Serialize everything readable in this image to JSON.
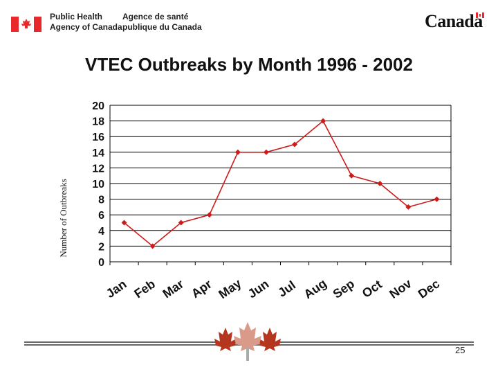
{
  "header": {
    "agency_en_line1": "Public Health",
    "agency_en_line2": "Agency of Canada",
    "agency_fr_line1": "Agence de santé",
    "agency_fr_line2": "publique du Canada",
    "wordmark": "Canada"
  },
  "slide": {
    "title": "VTEC Outbreaks by Month 1996 - 2002",
    "page_number": "25"
  },
  "colors": {
    "series": "#cc1b1b",
    "grid": "#000000",
    "flag_red": "#e8282b"
  },
  "chart_data": {
    "type": "line",
    "title": "VTEC Outbreaks by Month 1996 - 2002",
    "xlabel": "",
    "ylabel": "Number of Outbreaks",
    "categories": [
      "Jan",
      "Feb",
      "Mar",
      "Apr",
      "May",
      "Jun",
      "Jul",
      "Aug",
      "Sep",
      "Oct",
      "Nov",
      "Dec"
    ],
    "series": [
      {
        "values": [
          5,
          2,
          5,
          6,
          14,
          14,
          15,
          18,
          11,
          10,
          7,
          8
        ]
      }
    ],
    "y_ticks": [
      "0",
      "2",
      "4",
      "6",
      "8",
      "10",
      "12",
      "14",
      "16",
      "18",
      "20"
    ],
    "ylim": [
      0,
      20
    ],
    "grid": true,
    "legend": "none"
  }
}
